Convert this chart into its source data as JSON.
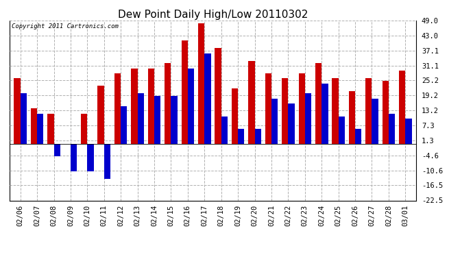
{
  "title": "Dew Point Daily High/Low 20110302",
  "copyright": "Copyright 2011 Cartronics.com",
  "dates": [
    "02/06",
    "02/07",
    "02/08",
    "02/09",
    "02/10",
    "02/11",
    "02/12",
    "02/13",
    "02/14",
    "02/15",
    "02/16",
    "02/17",
    "02/18",
    "02/19",
    "02/20",
    "02/21",
    "02/22",
    "02/23",
    "02/24",
    "02/25",
    "02/26",
    "02/27",
    "02/28",
    "03/01"
  ],
  "highs": [
    26,
    14,
    12,
    0,
    12,
    23,
    28,
    30,
    30,
    32,
    41,
    48,
    38,
    22,
    33,
    28,
    26,
    28,
    32,
    26,
    21,
    26,
    25,
    29
  ],
  "lows": [
    20,
    12,
    -5,
    -11,
    -11,
    -14,
    15,
    20,
    19,
    19,
    30,
    36,
    11,
    6,
    6,
    18,
    16,
    20,
    24,
    11,
    6,
    18,
    12,
    10
  ],
  "high_color": "#cc0000",
  "low_color": "#0000cc",
  "bg_color": "#ffffff",
  "grid_color": "#b0b0b0",
  "yticks": [
    -22.5,
    -16.5,
    -10.6,
    -4.6,
    1.3,
    7.3,
    13.2,
    19.2,
    25.2,
    31.1,
    37.1,
    43.0,
    49.0
  ],
  "ylim": [
    -22.5,
    49.0
  ],
  "bar_width": 0.38,
  "title_fontsize": 11,
  "tick_fontsize": 7.5,
  "copyright_fontsize": 6.5
}
